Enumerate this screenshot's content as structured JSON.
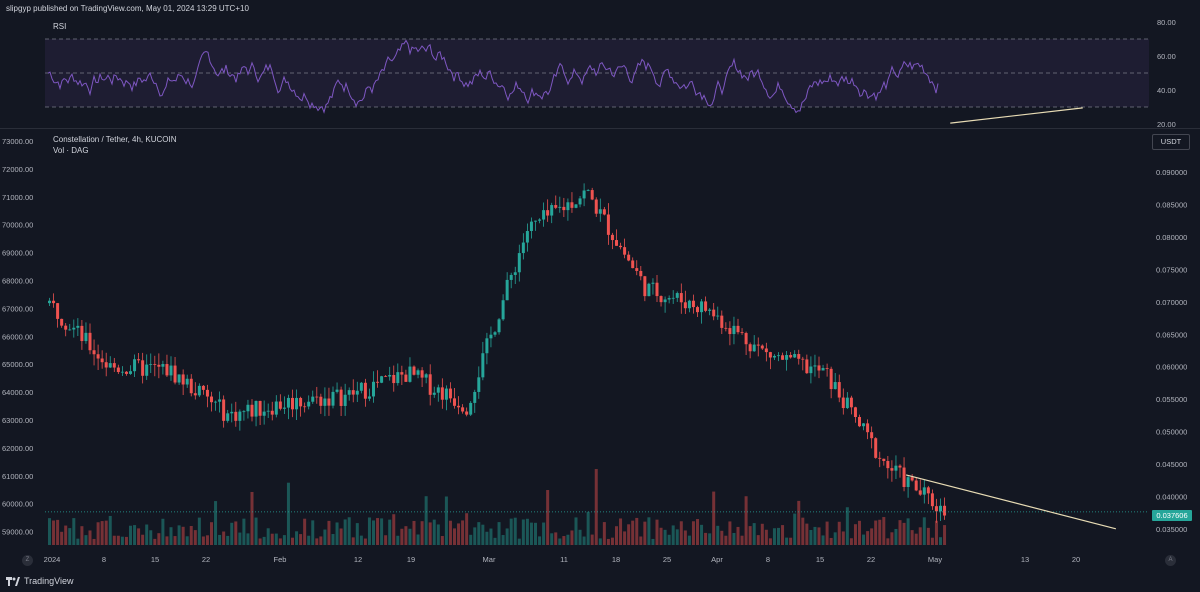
{
  "header": {
    "publisher": "slipgyp published on TradingView.com, May 01, 2024 13:29 UTC+10"
  },
  "rsi_pane": {
    "title": "RSI",
    "y_ticks": [
      "80.00",
      "60.00",
      "40.00",
      "20.00"
    ],
    "upper_band": 70,
    "middle_band": 50,
    "lower_band": 30,
    "trendline_color": "#e8dcb5"
  },
  "main_pane": {
    "symbol": "Constellation / Tether, 4h, KUCOIN",
    "volume_label": "Vol · DAG",
    "left_ticks": [
      "73000.00",
      "72000.00",
      "71000.00",
      "70000.00",
      "69000.00",
      "68000.00",
      "67000.00",
      "66000.00",
      "65000.00",
      "64000.00",
      "63000.00",
      "62000.00",
      "61000.00",
      "60000.00",
      "59000.00"
    ],
    "right_ticks": [
      "0.090000",
      "0.085000",
      "0.080000",
      "0.075000",
      "0.070000",
      "0.065000",
      "0.060000",
      "0.055000",
      "0.050000",
      "0.045000",
      "0.040000",
      "0.035000"
    ],
    "currency_button": "USDT",
    "last_price": "0.037606",
    "up_color": "#26a69a",
    "down_color": "#ef5350"
  },
  "x_axis": {
    "ticks": [
      "2024",
      "8",
      "15",
      "22",
      "Feb",
      "12",
      "19",
      "Mar",
      "11",
      "18",
      "25",
      "Apr",
      "8",
      "15",
      "22",
      "May",
      "13",
      "20"
    ]
  },
  "footer": {
    "brand": "TradingView",
    "zoom_left": "Z",
    "zoom_right": "A"
  },
  "chart_data": {
    "type": "candlestick",
    "title": "Constellation / Tether, 4h, KUCOIN",
    "ylabel": "USDT",
    "ylim": [
      0.0325,
      0.0965
    ],
    "dates": [
      "Jan 1",
      "Jan 8",
      "Jan 15",
      "Jan 22",
      "Feb 1",
      "Feb 12",
      "Feb 19",
      "Mar 1",
      "Mar 11",
      "Mar 18",
      "Mar 25",
      "Apr 1",
      "Apr 8",
      "Apr 15",
      "Apr 22",
      "May 1"
    ],
    "close": [
      0.0698,
      0.06,
      0.0595,
      0.0525,
      0.0545,
      0.0555,
      0.059,
      0.054,
      0.081,
      0.087,
      0.072,
      0.069,
      0.062,
      0.059,
      0.045,
      0.0376
    ],
    "rsi_ylim": [
      20,
      80
    ],
    "rsi_trendline": [
      [
        0.82,
        20.5
      ],
      [
        0.94,
        29.5
      ]
    ],
    "price_trendline": [
      [
        0.78,
        0.0433
      ],
      [
        0.97,
        0.035
      ]
    ]
  }
}
